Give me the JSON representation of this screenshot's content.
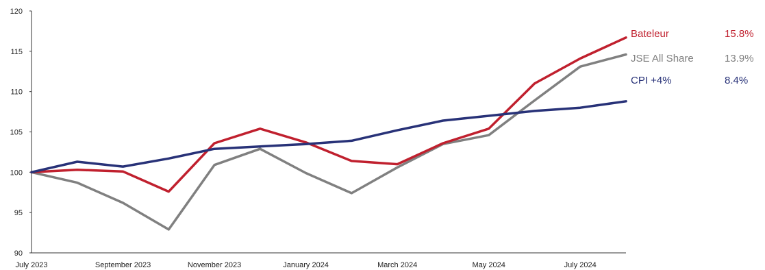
{
  "chart_data": {
    "type": "line",
    "title": "",
    "xlabel": "",
    "ylabel": "",
    "ylim": [
      90,
      120
    ],
    "yticks": [
      90,
      95,
      100,
      105,
      110,
      115,
      120
    ],
    "x_tick_labels": [
      "July 2023",
      "September 2023",
      "November 2023",
      "January 2024",
      "March 2024",
      "May 2024",
      "July 2024"
    ],
    "x": [
      "Jul 2023",
      "Aug 2023",
      "Sep 2023",
      "Oct 2023",
      "Nov 2023",
      "Dec 2023",
      "Jan 2024",
      "Feb 2024",
      "Mar 2024",
      "Apr 2024",
      "May 2024",
      "Jun 2024",
      "Jul 2024",
      "Aug 2024"
    ],
    "grid": false,
    "legend_position": "right",
    "series": [
      {
        "name": "Bateleur",
        "return_label": "15.8%",
        "color": "#c0202e",
        "values": [
          100,
          100.3,
          100.1,
          97.6,
          103.6,
          105.4,
          103.7,
          101.4,
          101.0,
          103.6,
          105.4,
          111.0,
          114.1,
          116.7
        ]
      },
      {
        "name": "JSE All Share",
        "return_label": "13.9%",
        "color": "#808080",
        "values": [
          100,
          98.7,
          96.2,
          92.9,
          100.9,
          102.9,
          99.9,
          97.4,
          100.6,
          103.5,
          104.6,
          108.9,
          113.1,
          114.6
        ]
      },
      {
        "name": "CPI +4%",
        "return_label": "8.4%",
        "color": "#283278",
        "values": [
          100,
          101.3,
          100.7,
          101.7,
          102.9,
          103.2,
          103.5,
          103.9,
          105.2,
          106.4,
          107.0,
          107.6,
          108.0,
          108.8
        ]
      }
    ]
  }
}
